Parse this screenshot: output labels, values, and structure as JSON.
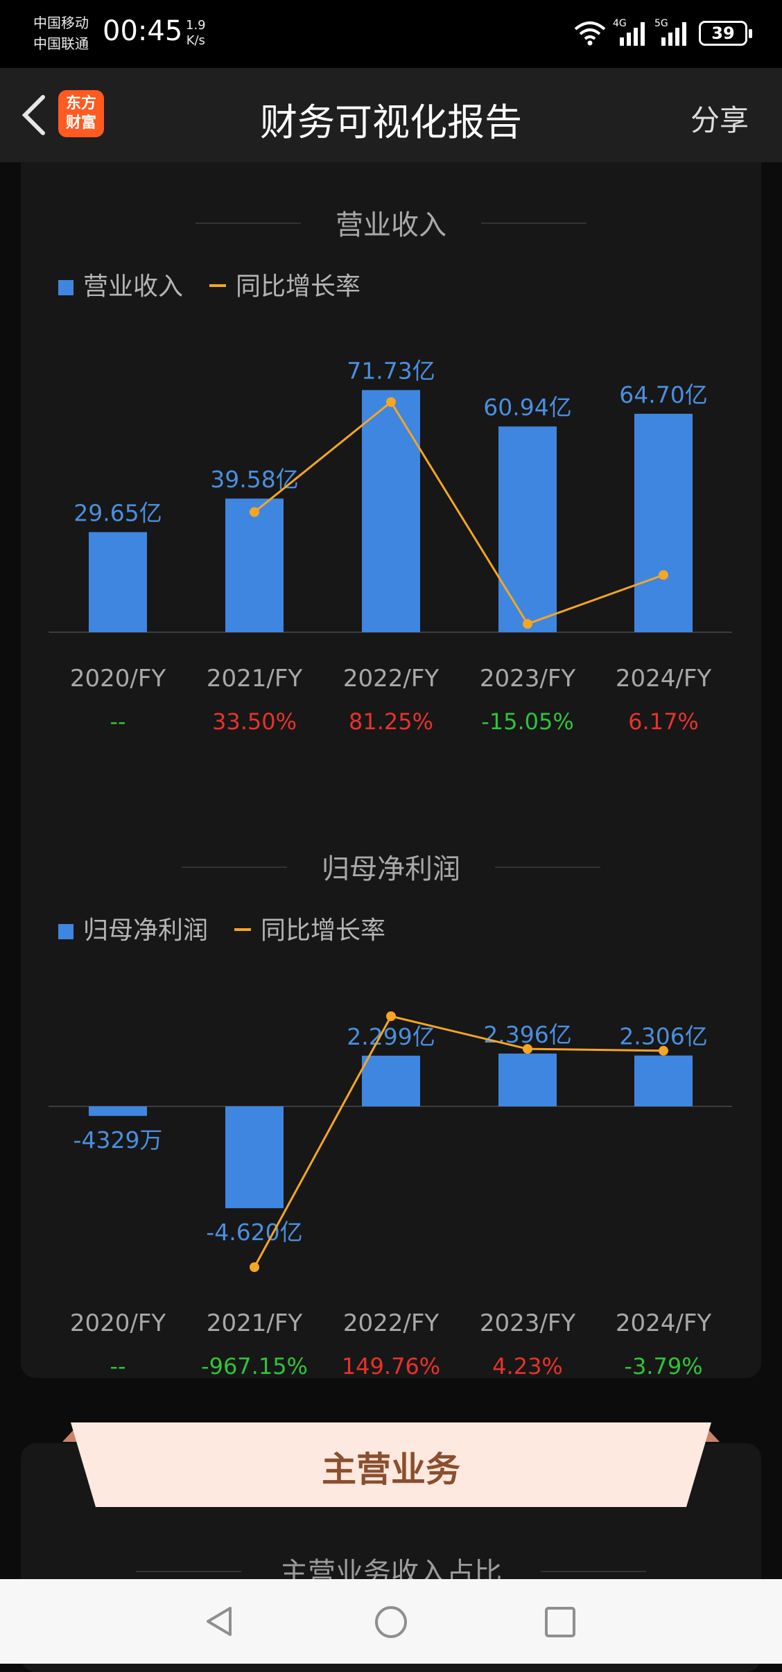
{
  "status": {
    "carrier1": "中国移动",
    "carrier2": "中国联通",
    "time": "00:45",
    "speed_value": "1.9",
    "speed_unit": "K/s",
    "net1": "4G",
    "net2": "5G",
    "battery": "39"
  },
  "nav": {
    "logo_line1": "东方",
    "logo_line2": "财富",
    "title": "财务可视化报告",
    "share": "分享"
  },
  "revenue": {
    "title": "营业收入",
    "legend_bar": "营业收入",
    "legend_line": "同比增长率"
  },
  "profit": {
    "title": "归母净利润",
    "legend_bar": "归母净利润",
    "legend_line": "同比增长率"
  },
  "main_business": {
    "banner": "主营业务",
    "subtitle": "主营业务收入占比"
  },
  "colors": {
    "bar": "#3f86e0",
    "line": "#f5a623",
    "positive": "#e8322b",
    "negative": "#2fc43a"
  },
  "chart_data": [
    {
      "type": "bar",
      "title": "营业收入",
      "categories": [
        "2020/FY",
        "2021/FY",
        "2022/FY",
        "2023/FY",
        "2024/FY"
      ],
      "series": [
        {
          "name": "营业收入",
          "unit": "亿",
          "values": [
            29.65,
            39.58,
            71.73,
            60.94,
            64.7
          ],
          "labels": [
            "29.65亿",
            "39.58亿",
            "71.73亿",
            "60.94亿",
            "64.70亿"
          ]
        },
        {
          "name": "同比增长率",
          "type": "line",
          "unit": "%",
          "values": [
            null,
            33.5,
            81.25,
            -15.05,
            6.17
          ],
          "labels": [
            "--",
            "33.50%",
            "81.25%",
            "-15.05%",
            "6.17%"
          ]
        }
      ]
    },
    {
      "type": "bar",
      "title": "归母净利润",
      "categories": [
        "2020/FY",
        "2021/FY",
        "2022/FY",
        "2023/FY",
        "2024/FY"
      ],
      "series": [
        {
          "name": "归母净利润",
          "unit": "亿",
          "values": [
            -0.4329,
            -4.62,
            2.299,
            2.396,
            2.306
          ],
          "labels": [
            "-4329万",
            "-4.620亿",
            "2.299亿",
            "2.396亿",
            "2.306亿"
          ]
        },
        {
          "name": "同比增长率",
          "type": "line",
          "unit": "%",
          "values": [
            null,
            -967.15,
            149.76,
            4.23,
            -3.79
          ],
          "labels": [
            "--",
            "-967.15%",
            "149.76%",
            "4.23%",
            "-3.79%"
          ]
        }
      ]
    }
  ]
}
